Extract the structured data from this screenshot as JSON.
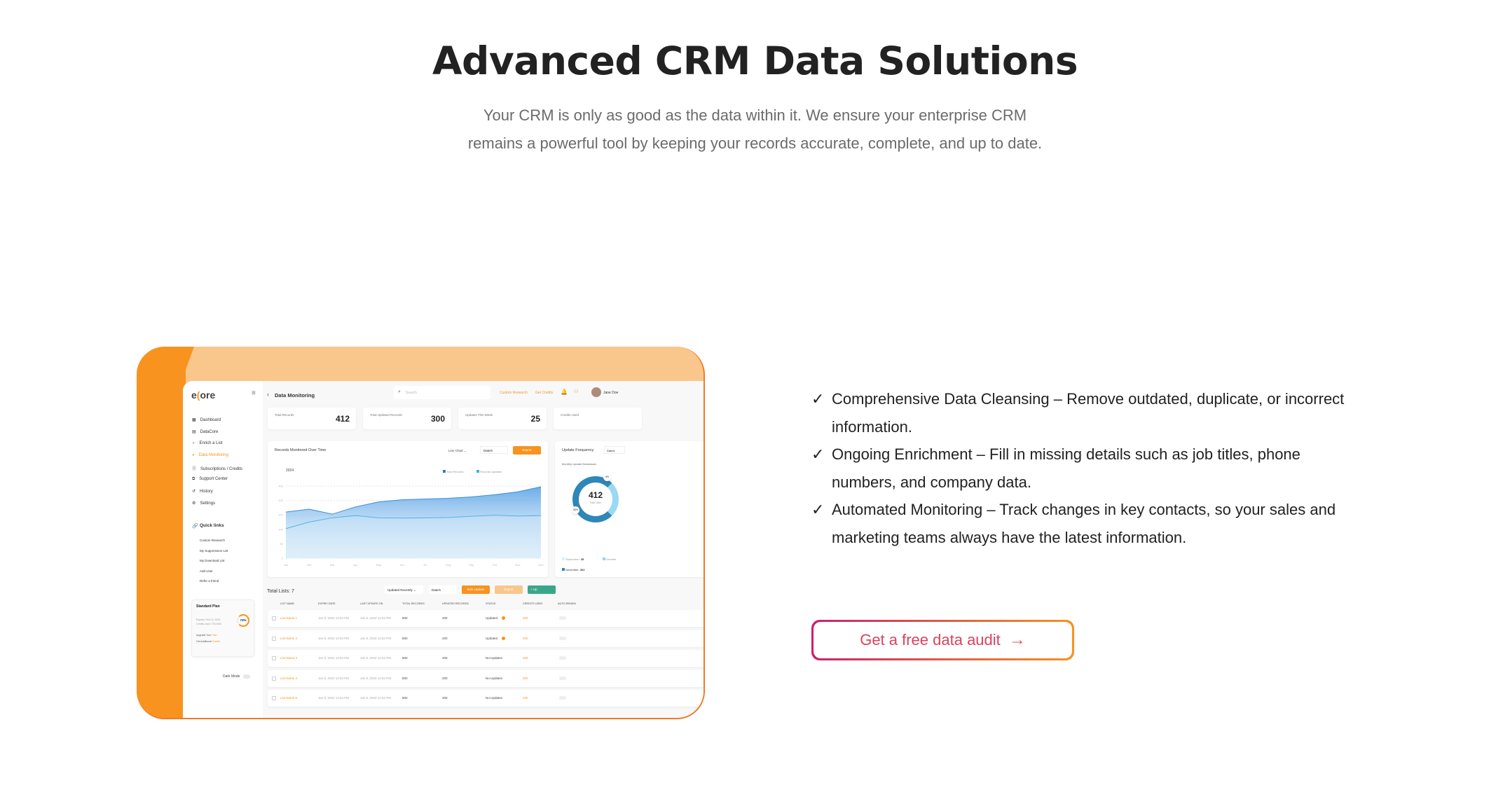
{
  "hero": {
    "title": "Advanced CRM Data Solutions",
    "subtitle_lines": [
      "Your CRM is only as good as the data within it. We ensure your enterprise CRM",
      "remains a powerful tool by keeping your records accurate, complete, and up to date."
    ]
  },
  "features": [
    {
      "icon": "check-icon",
      "text": "Comprehensive Data Cleansing – Remove outdated, duplicate, or incorrect information."
    },
    {
      "icon": "check-icon",
      "text": "Ongoing Enrichment – Fill in missing details such as job titles, phone numbers, and company data."
    },
    {
      "icon": "check-icon",
      "text": "Automated Monitoring – Track changes in key contacts, so your sales and marketing teams always have the latest information."
    }
  ],
  "cta": {
    "label": "Get a free data audit",
    "icon": "arrow-right-icon"
  },
  "colors": {
    "accent": "#f7931e",
    "peach": "#f9c68c",
    "cta_pink": "#c8216f",
    "chart_blue": "#3b8fd4"
  },
  "mockup": {
    "logo": "ecore",
    "sidebar": {
      "items": [
        "Dashboard",
        "DataCore",
        "Enrich a List",
        "Data Monitoring",
        "Subscriptions / Credits",
        "Support Center",
        "History",
        "Settings"
      ],
      "active": "Data Monitoring",
      "quick_links_title": "Quick links",
      "quick_links": [
        "Custom Research",
        "My Suppression List",
        "My Download List",
        "Add User",
        "Refer a friend"
      ],
      "plan": {
        "title": "Standard Plan",
        "expires": "Expires: Feb 14, 2023",
        "credits": "Credits used: 731/1000",
        "percent": "73%",
        "upgrade": "Upgrade Your",
        "upgrade_link": "Plan",
        "additional": "Get Additional",
        "additional_link": "Credits"
      },
      "dark_mode": "Dark Mode"
    },
    "header": {
      "back": "‹",
      "title": "Data Monitoring",
      "search_placeholder": "Search",
      "custom_research": "Custom Research",
      "get_credits": "Get Credits",
      "user": "Jane Doe"
    },
    "stats": [
      {
        "label": "Total Records",
        "value": "412"
      },
      {
        "label": "Total Updated Records",
        "value": "300"
      },
      {
        "label": "Updates This Week",
        "value": "25"
      },
      {
        "label": "Credits Used",
        "value": ""
      }
    ],
    "chart_card": {
      "title": "Records Monitored Over Time",
      "type_select": "Line Chart",
      "date": "Date/s",
      "export": "Export",
      "year": "2024",
      "legend": [
        "Total Records",
        "Records Updated"
      ]
    },
    "freq_card": {
      "title": "Update Frequency",
      "date": "Date/s",
      "subtitle": "Monthly Update Breakdown",
      "center_value": "412",
      "center_label": "Total Team",
      "pct_top": "9%",
      "pct_left": "56%",
      "legend": [
        {
          "label": "September:",
          "value": "35"
        },
        {
          "label": "October",
          "value": ""
        },
        {
          "label": "November:",
          "value": "262"
        }
      ]
    },
    "table": {
      "title": "Total Lists: 7",
      "sort": "Updated Recently",
      "date": "Date/s",
      "bulk": "Bulk Update",
      "export": "Export",
      "add": "+ Up",
      "headers": [
        "LIST NAME",
        "EXPIRY DATE",
        "LAST UPDATE ON",
        "TOTAL RECORDS",
        "UPDATED RECORDS",
        "STATUS",
        "CREDITS USED",
        "AUTO-RENEW"
      ],
      "rows": [
        [
          "List Name 1",
          "Jan 8, 2022  12:54 PM",
          "Jan 8, 2022  12:54 PM",
          "800",
          "200",
          "Updated",
          "400"
        ],
        [
          "List Name 2",
          "Jan 8, 2022  12:54 PM",
          "Jan 8, 2022  12:54 PM",
          "800",
          "200",
          "Updated",
          "400"
        ],
        [
          "List Name 3",
          "Jan 8, 2022  12:54 PM",
          "Jan 8, 2022  12:54 PM",
          "800",
          "200",
          "No-Updates",
          "400"
        ],
        [
          "List Name 4",
          "Jan 8, 2022  12:54 PM",
          "Jan 8, 2022  12:54 PM",
          "800",
          "200",
          "No-Updates",
          "400"
        ],
        [
          "List Name 5",
          "Jan 8, 2022  12:54 PM",
          "Jan 8, 2022  12:54 PM",
          "800",
          "200",
          "No-Updates",
          "400"
        ]
      ]
    }
  },
  "chart_data": {
    "type": "area",
    "categories": [
      "Jan",
      "Feb",
      "Mar",
      "Apr",
      "May",
      "Jun",
      "Jul",
      "Aug",
      "Sep",
      "Oct",
      "Nov",
      "Dec"
    ],
    "yticks": [
      "400",
      "300",
      "200",
      "100",
      "50",
      "0"
    ],
    "series": [
      {
        "name": "Total Records",
        "values": [
          220,
          240,
          205,
          255,
          290,
          305,
          310,
          315,
          325,
          340,
          360,
          395
        ]
      },
      {
        "name": "Records Updated",
        "values": [
          105,
          150,
          180,
          195,
          180,
          178,
          180,
          182,
          190,
          198,
          192,
          195
        ]
      }
    ]
  }
}
